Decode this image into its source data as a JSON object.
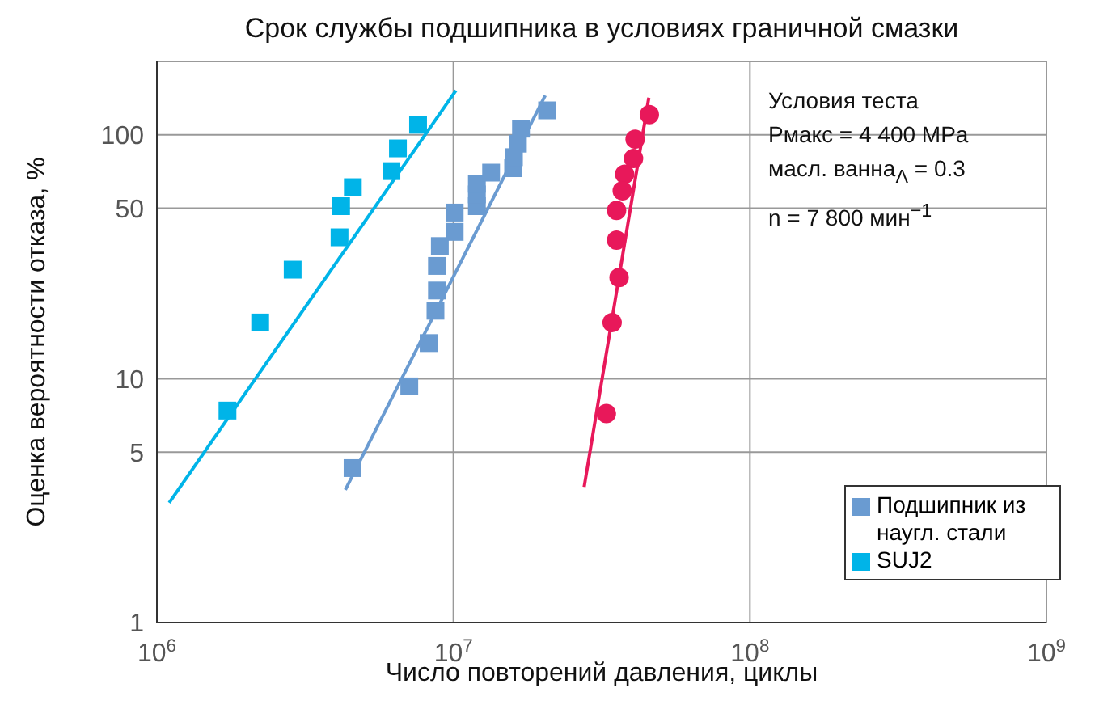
{
  "chart_data": {
    "type": "scatter",
    "title": "Срок службы подшипника в условиях граничной смазки",
    "xlabel": "Число повторений давления, циклы",
    "ylabel": "Оценка вероятности отказа, %",
    "log": "xy",
    "grid": true,
    "legend": "bottom right",
    "xlim": [
      1000000,
      1000000000
    ],
    "xticks": [
      {
        "value": 1000000,
        "label": "10$^{6}$"
      },
      {
        "value": 10000000,
        "label": "10$^{7}$"
      },
      {
        "value": 100000000,
        "label": "10$^{8}$"
      },
      {
        "value": 1000000000,
        "label": "10$^{9}$"
      }
    ],
    "ylim": [
      1,
      200
    ],
    "yticks": [
      1,
      5,
      10,
      50,
      100
    ],
    "annotations": [
      "Условия теста",
      "Pмакс = 4 400 MPa",
      "масл. ванна$_{Λ}$ = 0.3",
      "n = 7 800 мин$^{−1}$"
    ],
    "series": [
      {
        "color": "#e8185a",
        "marker": "circle",
        "x": [
          45800000,
          41000000,
          40500000,
          37800000,
          37100000,
          35500000,
          35500000,
          36200000,
          34300000,
          32800000
        ],
        "values": [
          121,
          96,
          80,
          69,
          59,
          49,
          37,
          26,
          17,
          7.2
        ]
      },
      {
        "type": "line",
        "color": "#e8185a",
        "marker": "none",
        "x": [
          27600000,
          45600000
        ],
        "values": [
          3.6,
          142
        ]
      },
      {
        "name": "Подшипник из наугл. стали",
        "color": "#6a9bd1",
        "marker": "square",
        "x": [
          4570000,
          7100000,
          8250000,
          8700000,
          8800000,
          8800000,
          9000000,
          10100000,
          10100000,
          12000000,
          12000000,
          12000000,
          13400000,
          15900000,
          16000000,
          16500000,
          16900000,
          20700000
        ],
        "values": [
          4.3,
          9.3,
          14,
          19,
          23,
          29,
          35,
          40,
          48,
          51,
          57,
          63,
          70,
          73,
          81,
          92,
          106,
          126
        ]
      },
      {
        "type": "line",
        "color": "#6a9bd1",
        "marker": "none",
        "x": [
          4320000,
          20400000
        ],
        "values": [
          3.5,
          145
        ]
      },
      {
        "name": "SUJ2",
        "color": "#00b4e8",
        "marker": "square",
        "x": [
          1730000,
          2230000,
          2870000,
          4130000,
          4180000,
          4580000,
          6180000,
          6500000,
          7600000
        ],
        "values": [
          7.4,
          17,
          28,
          38,
          51,
          61,
          71,
          88,
          110
        ]
      },
      {
        "type": "line",
        "color": "#00b4e8",
        "marker": "none",
        "x": [
          1100000,
          10200000
        ],
        "values": [
          3.1,
          152
        ]
      }
    ]
  }
}
